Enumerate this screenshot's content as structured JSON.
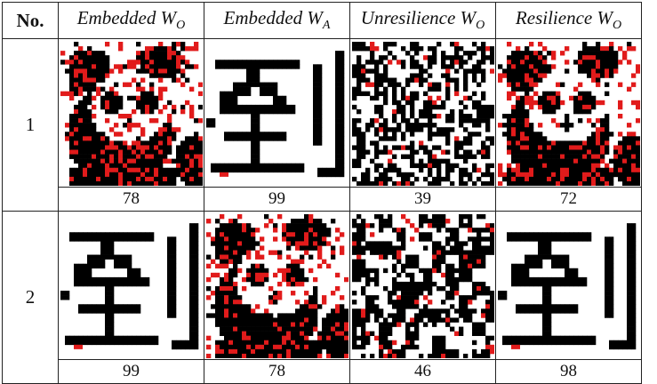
{
  "table": {
    "headers": [
      {
        "text": "No.",
        "main": "",
        "sub": ""
      },
      {
        "main": "Embedded W",
        "sub": "O"
      },
      {
        "main": "Embedded W",
        "sub": "A"
      },
      {
        "main": "Unresilience W",
        "sub": "O"
      },
      {
        "main": "Resilience W",
        "sub": "O"
      }
    ],
    "rows": [
      {
        "no": "1",
        "images": [
          {
            "subject": "panda-watermark",
            "noise": "red-salt-pepper"
          },
          {
            "subject": "chinese-character-watermark",
            "noise": "none"
          },
          {
            "subject": "scrambled-noise",
            "noise": "random"
          },
          {
            "subject": "panda-watermark",
            "noise": "red-salt-pepper"
          }
        ],
        "scores": [
          "78",
          "99",
          "39",
          "72"
        ]
      },
      {
        "no": "2",
        "images": [
          {
            "subject": "chinese-character-watermark",
            "noise": "none"
          },
          {
            "subject": "panda-watermark",
            "noise": "red-salt-pepper"
          },
          {
            "subject": "blocky-noise",
            "noise": "random"
          },
          {
            "subject": "chinese-character-watermark",
            "noise": "none"
          }
        ],
        "scores": [
          "99",
          "78",
          "46",
          "98"
        ]
      }
    ]
  },
  "colors": {
    "ink": "#000000",
    "noise_red": "#e11b1b",
    "paper": "#ffffff",
    "border": "#222222"
  }
}
